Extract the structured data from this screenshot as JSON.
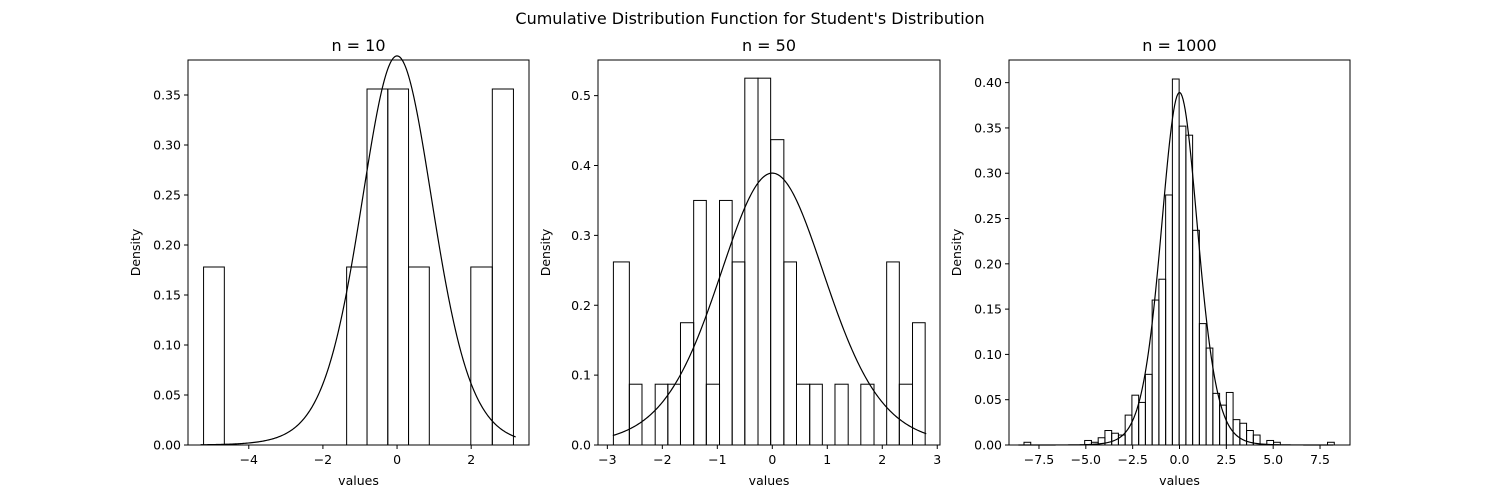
{
  "figure": {
    "suptitle": "Cumulative Distribution Function for Student's Distribution"
  },
  "chart_data": [
    {
      "type": "bar",
      "title": "n = 10",
      "xlabel": "values",
      "ylabel": "Density",
      "xlim": [
        -5.64,
        3.56
      ],
      "ylim": [
        0,
        0.385
      ],
      "xticks": [
        -4,
        -2,
        0,
        2
      ],
      "xtick_labels": [
        "−4",
        "−2",
        "0",
        "2"
      ],
      "yticks": [
        0,
        0.05,
        0.1,
        0.15,
        0.2,
        0.25,
        0.3,
        0.35
      ],
      "ytick_labels": [
        "0.00",
        "0.05",
        "0.10",
        "0.15",
        "0.20",
        "0.25",
        "0.30",
        "0.35"
      ],
      "bin_edges": [
        -5.22,
        -4.66,
        -4.1,
        -3.54,
        -2.98,
        -2.42,
        -1.86,
        -1.36,
        -0.81,
        -0.25,
        0.31,
        0.87,
        1.43,
        1.99,
        2.57,
        3.14
      ],
      "values": [
        0.178,
        0,
        0,
        0,
        0,
        0,
        0,
        0.178,
        0.356,
        0.356,
        0.178,
        0,
        0,
        0.178,
        0.356
      ],
      "curve": {
        "name": "t pdf",
        "df": 10,
        "x_range": [
          -5.3,
          3.2
        ]
      },
      "grid": false
    },
    {
      "type": "bar",
      "title": "n = 50",
      "xlabel": "values",
      "ylabel": "Density",
      "xlim": [
        -3.17,
        3.05
      ],
      "ylim": [
        0,
        0.551
      ],
      "xticks": [
        -3,
        -2,
        -1,
        0,
        1,
        2,
        3
      ],
      "xtick_labels": [
        "−3",
        "−2",
        "−1",
        "0",
        "1",
        "2",
        "3"
      ],
      "yticks": [
        0,
        0.1,
        0.2,
        0.3,
        0.4,
        0.5
      ],
      "ytick_labels": [
        "0.0",
        "0.1",
        "0.2",
        "0.3",
        "0.4",
        "0.5"
      ],
      "bin_edges": [
        -2.89,
        -2.6,
        -2.37,
        -2.13,
        -1.9,
        -1.67,
        -1.43,
        -1.2,
        -0.96,
        -0.73,
        -0.5,
        -0.26,
        -0.03,
        0.21,
        0.44,
        0.68,
        0.91,
        1.14,
        1.38,
        1.61,
        1.85,
        2.08,
        2.31,
        2.55,
        2.78
      ],
      "values": [
        0.262,
        0.087,
        0,
        0.087,
        0.087,
        0.175,
        0.35,
        0.087,
        0.35,
        0.262,
        0.525,
        0.525,
        0.437,
        0.262,
        0.087,
        0.087,
        0,
        0.087,
        0,
        0.087,
        0,
        0.262,
        0.087,
        0.175
      ],
      "curve": {
        "name": "t pdf",
        "df": 10,
        "x_range": [
          -2.9,
          2.8
        ]
      },
      "grid": false
    },
    {
      "type": "bar",
      "title": "n = 1000",
      "xlabel": "values",
      "ylabel": "Density",
      "xlim": [
        -9.1,
        9.1
      ],
      "ylim": [
        0,
        0.425
      ],
      "xticks": [
        -7.5,
        -5,
        -2.5,
        0,
        2.5,
        5,
        7.5
      ],
      "xtick_labels": [
        "−7.5",
        "−5.0",
        "−2.5",
        "0.0",
        "2.5",
        "5.0",
        "7.5"
      ],
      "yticks": [
        0,
        0.05,
        0.1,
        0.15,
        0.2,
        0.25,
        0.3,
        0.35,
        0.4
      ],
      "ytick_labels": [
        "0.00",
        "0.05",
        "0.10",
        "0.15",
        "0.20",
        "0.25",
        "0.30",
        "0.35",
        "0.40"
      ],
      "bin_start": -8.3,
      "bin_width": 0.36,
      "values": [
        0.003,
        0,
        0,
        0,
        0,
        0,
        0,
        0,
        0,
        0.005,
        0.003,
        0.008,
        0.016,
        0.013,
        0.011,
        0.033,
        0.055,
        0.047,
        0.078,
        0.16,
        0.183,
        0.276,
        0.404,
        0.352,
        0.342,
        0.237,
        0.134,
        0.107,
        0.057,
        0.044,
        0.058,
        0.028,
        0.024,
        0.016,
        0.011,
        0,
        0.005,
        0.003,
        0,
        0,
        0,
        0,
        0,
        0,
        0,
        0.003
      ],
      "curve": {
        "name": "t pdf",
        "df": 10,
        "x_range": [
          -8.6,
          8.2
        ]
      },
      "grid": false
    }
  ]
}
